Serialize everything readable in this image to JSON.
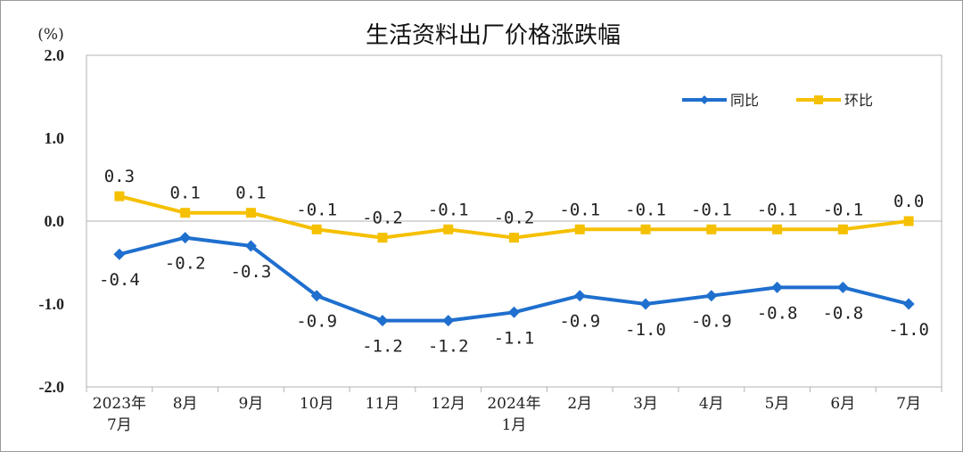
{
  "chart_data": {
    "type": "line",
    "title": "生活资料出厂价格涨跌幅",
    "unit_label": "(%)",
    "ylim": [
      -2.0,
      2.0
    ],
    "yticks": [
      "2.0",
      "1.0",
      "0.0",
      "-1.0",
      "-2.0"
    ],
    "ytick_values": [
      2.0,
      1.0,
      0.0,
      -1.0,
      -2.0
    ],
    "categories": [
      [
        "2023年",
        "7月"
      ],
      [
        "8月"
      ],
      [
        "9月"
      ],
      [
        "10月"
      ],
      [
        "11月"
      ],
      [
        "12月"
      ],
      [
        "2024年",
        "1月"
      ],
      [
        "2月"
      ],
      [
        "3月"
      ],
      [
        "4月"
      ],
      [
        "5月"
      ],
      [
        "6月"
      ],
      [
        "7月"
      ]
    ],
    "grid": false,
    "legend_position": "top-right",
    "series": [
      {
        "name": "同比",
        "color": "#1f6fce",
        "marker": "diamond",
        "values": [
          -0.4,
          -0.2,
          -0.3,
          -0.9,
          -1.2,
          -1.2,
          -1.1,
          -0.9,
          -1.0,
          -0.9,
          -0.8,
          -0.8,
          -1.0
        ],
        "labels": [
          "-0.4",
          "-0.2",
          "-0.3",
          "-0.9",
          "-1.2",
          "-1.2",
          "-1.1",
          "-0.9",
          "-1.0",
          "-0.9",
          "-0.8",
          "-0.8",
          "-1.0"
        ]
      },
      {
        "name": "环比",
        "color": "#f5c000",
        "marker": "square",
        "values": [
          0.3,
          0.1,
          0.1,
          -0.1,
          -0.2,
          -0.1,
          -0.2,
          -0.1,
          -0.1,
          -0.1,
          -0.1,
          -0.1,
          0.0
        ],
        "labels": [
          "0.3",
          "0.1",
          "0.1",
          "-0.1",
          "-0.2",
          "-0.1",
          "-0.2",
          "-0.1",
          "-0.1",
          "-0.1",
          "-0.1",
          "-0.1",
          "0.0"
        ]
      }
    ]
  }
}
